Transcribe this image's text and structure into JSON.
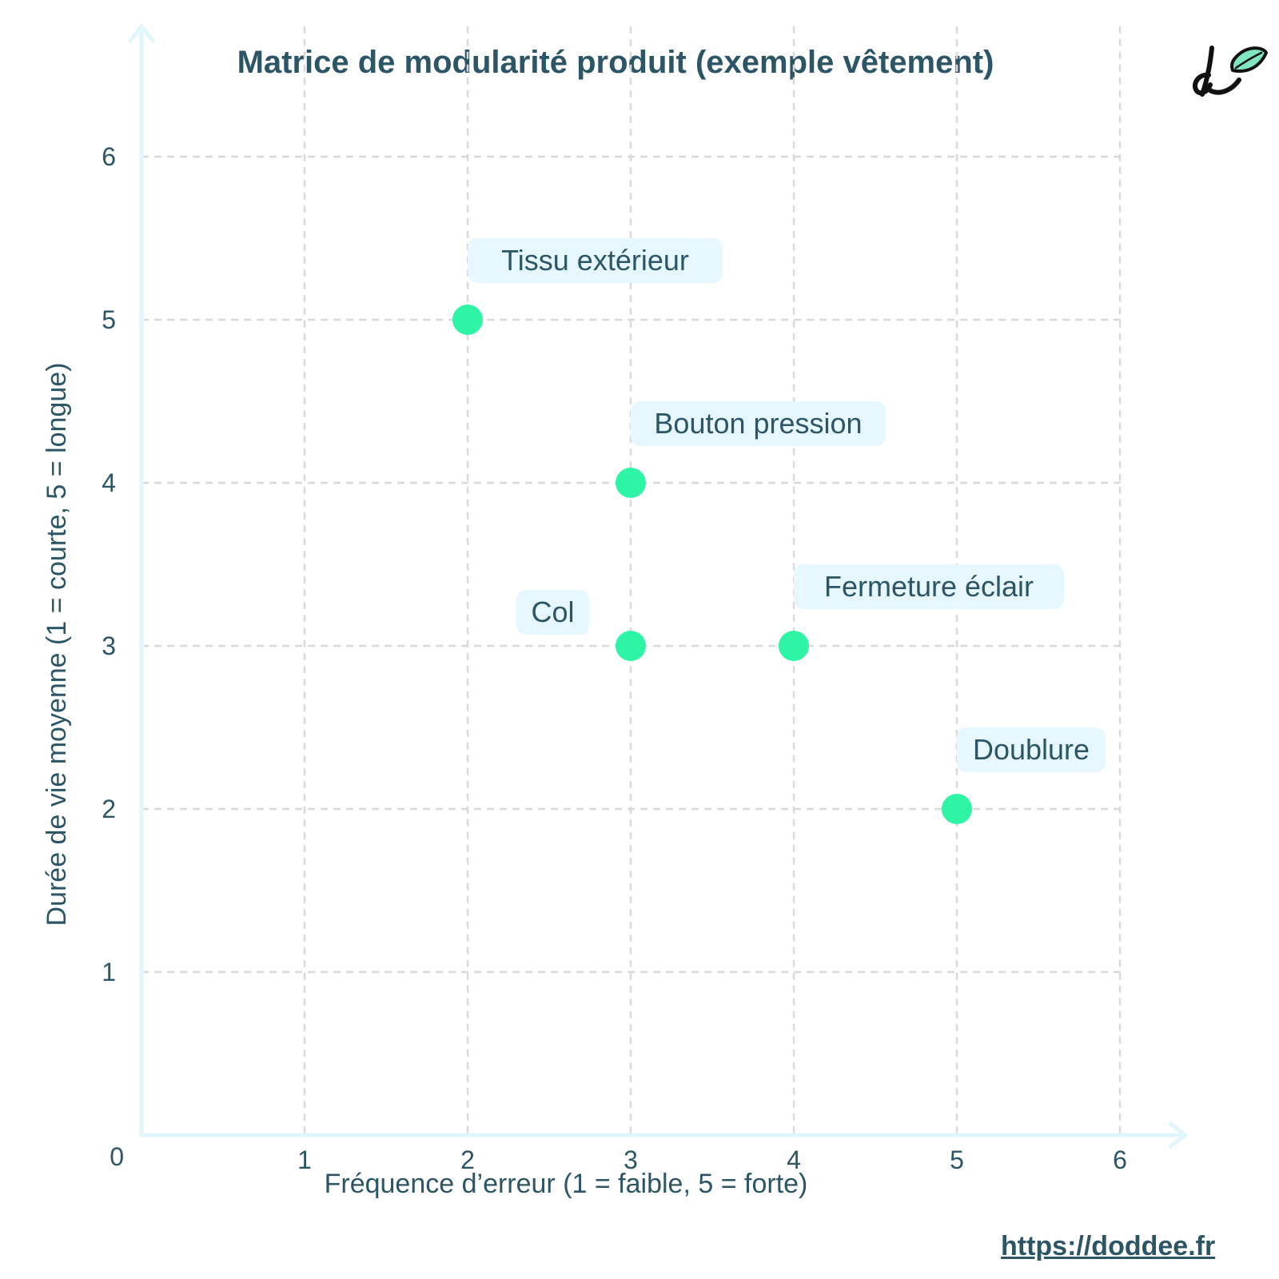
{
  "chart_data": {
    "type": "scatter",
    "title": "Matrice de modularité produit (exemple vêtement)",
    "xlabel": "Fréquence d’erreur (1 = faible, 5 = forte)",
    "ylabel": "Durée de vie moyenne (1 = courte, 5 = longue)",
    "xlim": [
      0,
      6.4
    ],
    "ylim": [
      0,
      6.8
    ],
    "x_ticks": [
      1,
      2,
      3,
      4,
      5,
      6
    ],
    "y_ticks": [
      1,
      2,
      3,
      4,
      5,
      6
    ],
    "origin_label": "0",
    "grid": true,
    "points": [
      {
        "label": "Tissu extérieur",
        "x": 2,
        "y": 5
      },
      {
        "label": "Bouton pression",
        "x": 3,
        "y": 4
      },
      {
        "label": "Col",
        "x": 3,
        "y": 3
      },
      {
        "label": "Fermeture éclair",
        "x": 4,
        "y": 3
      },
      {
        "label": "Doublure",
        "x": 5,
        "y": 2
      }
    ]
  },
  "colors": {
    "point": "#2ef5a6",
    "label_bg": "#e6f8fd",
    "axis": "#e0f6fb",
    "grid": "#d9d9d9",
    "text": "#2c5566"
  },
  "logo_icon": "doddee-leaf-logo",
  "footer": {
    "link_text": "https://doddee.fr"
  }
}
